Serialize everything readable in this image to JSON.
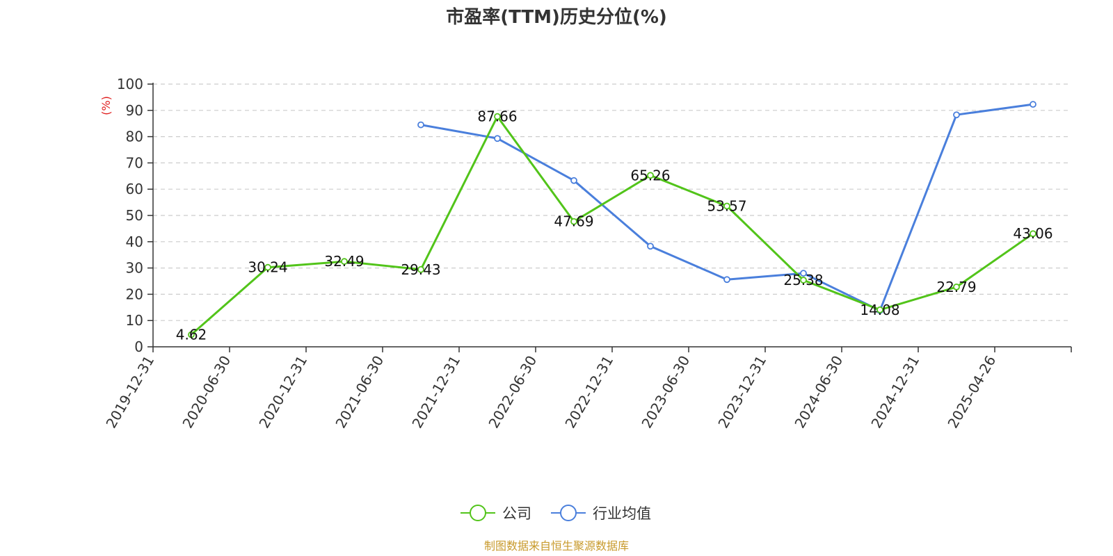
{
  "chart_data": {
    "type": "line",
    "title": "市盈率(TTM)历史分位(%)",
    "ylabel": "(%)",
    "ylim": [
      0,
      100
    ],
    "yticks": [
      0,
      10,
      20,
      30,
      40,
      50,
      60,
      70,
      80,
      90,
      100
    ],
    "categories": [
      "2019-12-31",
      "2020-06-30",
      "2020-12-31",
      "2021-06-30",
      "2021-12-31",
      "2022-06-30",
      "2022-12-31",
      "2023-06-30",
      "2023-12-31",
      "2024-06-30",
      "2024-12-31",
      "2025-04-26"
    ],
    "grid": true,
    "legend_position": "bottom",
    "series": [
      {
        "name": "公司",
        "color": "#52c41a",
        "show_labels": true,
        "values": [
          4.62,
          30.24,
          32.49,
          29.43,
          87.66,
          47.69,
          65.26,
          53.57,
          25.38,
          14.08,
          22.79,
          43.06
        ]
      },
      {
        "name": "行业均值",
        "color": "#4a7fdc",
        "show_labels": false,
        "values": [
          null,
          null,
          null,
          84.5,
          79.3,
          63.3,
          38.3,
          25.6,
          28.0,
          13.8,
          88.3,
          92.3
        ]
      }
    ]
  },
  "source": "制图数据来自恒生聚源数据库"
}
